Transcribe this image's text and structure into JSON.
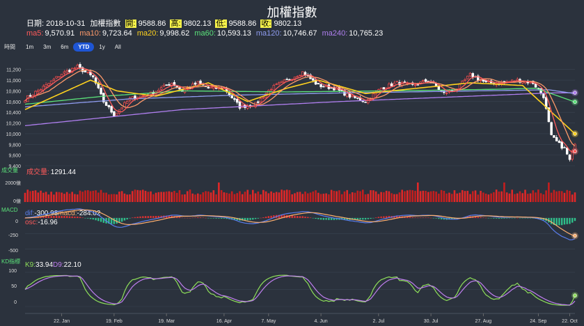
{
  "header": {
    "title": "加權指數",
    "date_label": "日期:",
    "date_value": "2018-10-31",
    "index_name": "加權指數",
    "open_label": "開:",
    "open_value": "9588.86",
    "high_label": "高:",
    "high_value": "9802.13",
    "low_label": "低:",
    "low_value": "9588.86",
    "close_label": "收:",
    "close_value": "9802.13"
  },
  "ma_legend": [
    {
      "label": "ma5:",
      "value": "9,570.91",
      "color": "#ff5a5a"
    },
    {
      "label": "ma10:",
      "value": "9,723.64",
      "color": "#ff9a6a"
    },
    {
      "label": "ma20:",
      "value": "9,998.62",
      "color": "#ffd21e"
    },
    {
      "label": "ma60:",
      "value": "10,593.13",
      "color": "#5be37a"
    },
    {
      "label": "ma120:",
      "value": "10,746.67",
      "color": "#8f9cf0"
    },
    {
      "label": "ma240:",
      "value": "10,765.23",
      "color": "#b07ff0"
    }
  ],
  "period_selector": {
    "label": "時間",
    "options": [
      "1m",
      "3m",
      "6m",
      "YTD",
      "1y",
      "All"
    ],
    "selected": "YTD"
  },
  "volume_panel": {
    "title": "成交量",
    "legend_label": "成交量",
    "legend_value": "1291.44",
    "ticks": [
      "2000億",
      "0億"
    ]
  },
  "macd_panel": {
    "title": "MACD",
    "dif_label": "dif:",
    "dif_value": "-300.98",
    "macd_label": "macd:",
    "macd_value": "-284.02",
    "osc_label": "osc:",
    "osc_value": "-16.96",
    "ticks": [
      "0",
      "-250",
      "-500"
    ]
  },
  "kd_panel": {
    "title": "KD指標",
    "k_label": "K9:",
    "k_value": "33.94",
    "d_label": "D9:",
    "d_value": "22.10",
    "ticks": [
      "100",
      "50",
      "0"
    ]
  },
  "chart_data": {
    "type": "candlestick",
    "price_axis": {
      "ticks": [
        11200,
        11000,
        10800,
        10600,
        10400,
        10200,
        10000,
        9800,
        9600,
        9400
      ],
      "range": [
        9400,
        11300
      ]
    },
    "x_axis_labels": [
      "22. Jan",
      "19. Feb",
      "19. Mar",
      "16. Apr",
      "7. May",
      "4. Jun",
      "2. Jul",
      "30. Jul",
      "27. Aug",
      "24. Sep",
      "22. Oct"
    ],
    "close_anchors": [
      [
        0,
        10650
      ],
      [
        8,
        10900
      ],
      [
        14,
        11120
      ],
      [
        20,
        11250
      ],
      [
        26,
        11050
      ],
      [
        30,
        10600
      ],
      [
        34,
        10350
      ],
      [
        40,
        10650
      ],
      [
        48,
        10750
      ],
      [
        56,
        10950
      ],
      [
        60,
        10800
      ],
      [
        66,
        10950
      ],
      [
        70,
        10850
      ],
      [
        76,
        10850
      ],
      [
        82,
        10500
      ],
      [
        88,
        10550
      ],
      [
        94,
        10850
      ],
      [
        100,
        11000
      ],
      [
        106,
        11150
      ],
      [
        112,
        10900
      ],
      [
        118,
        10850
      ],
      [
        124,
        10700
      ],
      [
        130,
        10600
      ],
      [
        136,
        10850
      ],
      [
        142,
        10950
      ],
      [
        148,
        10900
      ],
      [
        154,
        11000
      ],
      [
        160,
        10750
      ],
      [
        165,
        10850
      ],
      [
        170,
        11100
      ],
      [
        176,
        10950
      ],
      [
        182,
        10950
      ],
      [
        188,
        11000
      ],
      [
        194,
        10950
      ],
      [
        198,
        10700
      ],
      [
        201,
        9950
      ],
      [
        204,
        9800
      ],
      [
        206,
        9720
      ],
      [
        208,
        9500
      ],
      [
        210,
        9802
      ]
    ],
    "ma_anchors": {
      "ma20": [
        [
          0,
          10450
        ],
        [
          25,
          11000
        ],
        [
          35,
          10800
        ],
        [
          50,
          10700
        ],
        [
          70,
          10950
        ],
        [
          85,
          10600
        ],
        [
          100,
          10850
        ],
        [
          112,
          11000
        ],
        [
          130,
          10750
        ],
        [
          150,
          10850
        ],
        [
          170,
          10950
        ],
        [
          190,
          10900
        ],
        [
          200,
          10450
        ],
        [
          210,
          9998
        ]
      ],
      "ma60": [
        [
          0,
          10550
        ],
        [
          30,
          10700
        ],
        [
          60,
          10800
        ],
        [
          100,
          10780
        ],
        [
          140,
          10800
        ],
        [
          180,
          10830
        ],
        [
          195,
          10850
        ],
        [
          210,
          10593
        ]
      ],
      "ma120": [
        [
          0,
          10500
        ],
        [
          40,
          10650
        ],
        [
          80,
          10720
        ],
        [
          120,
          10760
        ],
        [
          160,
          10790
        ],
        [
          200,
          10820
        ],
        [
          210,
          10747
        ]
      ],
      "ma240": [
        [
          0,
          10150
        ],
        [
          60,
          10450
        ],
        [
          120,
          10600
        ],
        [
          160,
          10680
        ],
        [
          200,
          10760
        ],
        [
          210,
          10765
        ]
      ]
    },
    "volume": {
      "range": [
        0,
        3000
      ],
      "typical": 1250,
      "last": 1291.44
    },
    "macd": {
      "range": [
        -550,
        100
      ],
      "last_dif": -300.98,
      "last_macd": -284.02,
      "last_osc": -16.96
    },
    "kd": {
      "range": [
        0,
        110
      ],
      "last_k": 33.94,
      "last_d": 22.1
    }
  }
}
